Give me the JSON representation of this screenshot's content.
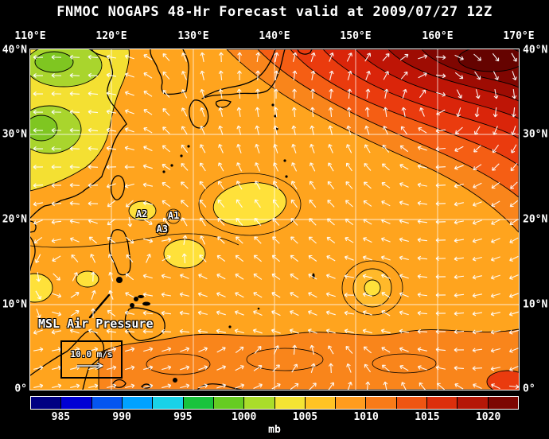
{
  "title": "FNMOC NOGAPS 48-Hr Forecast valid at 2009/07/27 12Z",
  "axes": {
    "top": [
      "110°E",
      "120°E",
      "130°E",
      "140°E",
      "150°E",
      "160°E",
      "170°E"
    ],
    "left": [
      "40°N",
      "30°N",
      "20°N",
      "10°N",
      "0°"
    ],
    "right": [
      "40°N",
      "30°N",
      "20°N",
      "10°N",
      "0°"
    ]
  },
  "map": {
    "label": "MSL Air Pressure",
    "wind_scale_label": "10.0 m/s",
    "annotations": [
      {
        "id": "A2",
        "lon": 123.7,
        "lat": 20.7
      },
      {
        "id": "A1",
        "lon": 127.6,
        "lat": 20.5
      },
      {
        "id": "A3",
        "lon": 126.2,
        "lat": 18.9
      }
    ]
  },
  "colorbar": {
    "unit": "mb",
    "labels": [
      "985",
      "990",
      "995",
      "1000",
      "1005",
      "1010",
      "1015",
      "1020"
    ],
    "colors": [
      "#000082",
      "#0000D4",
      "#0455F0",
      "#00A2FF",
      "#19D2E8",
      "#19C33C",
      "#66CC22",
      "#AADD2A",
      "#F4E433",
      "#FFC324",
      "#FF9C1E",
      "#F87B18",
      "#EF5512",
      "#DC2F0C",
      "#B51707",
      "#7C0702"
    ]
  },
  "chart_data": {
    "type": "heatmap",
    "title": "FNMOC NOGAPS 48-Hr Forecast valid at 2009/07/27 12Z",
    "field": "MSL Air Pressure",
    "units": "mb",
    "x_axis": {
      "label": "longitude",
      "range": [
        110,
        170
      ],
      "ticks": [
        "110°E",
        "120°E",
        "130°E",
        "140°E",
        "150°E",
        "160°E",
        "170°E"
      ]
    },
    "y_axis": {
      "label": "latitude",
      "range": [
        0,
        40
      ],
      "ticks": [
        "0°",
        "10°N",
        "20°N",
        "30°N",
        "40°N"
      ]
    },
    "colorbar_ticks_mb": [
      985,
      990,
      995,
      1000,
      1005,
      1010,
      1015,
      1020
    ],
    "grid": true,
    "overlays": [
      {
        "type": "wind-vectors",
        "color": "white",
        "reference": "10.0 m/s"
      },
      {
        "type": "coastlines",
        "color": "black"
      }
    ],
    "features": [
      {
        "name": "subtropical high maximum",
        "lon": 162,
        "lat": 35,
        "approx_value_mb": 1020
      },
      {
        "name": "A1 low",
        "lon": 127.6,
        "lat": 20.5,
        "approx_value_mb": 1004
      },
      {
        "name": "A2 low",
        "lon": 123.7,
        "lat": 20.7,
        "approx_value_mb": 1004
      },
      {
        "name": "A3 low",
        "lon": 126.2,
        "lat": 18.9,
        "approx_value_mb": 1004
      },
      {
        "name": "broad low (yellow area)",
        "lon": 137,
        "lat": 21.5,
        "approx_value_mb": 1004
      },
      {
        "name": "circular low",
        "lon": 152,
        "lat": 12,
        "approx_value_mb": 1006
      },
      {
        "name": "continental low over China (green area)",
        "lon": 113,
        "lat": 31,
        "approx_value_mb": 1000
      },
      {
        "name": "background field",
        "approx_value_mb": 1010
      }
    ]
  }
}
